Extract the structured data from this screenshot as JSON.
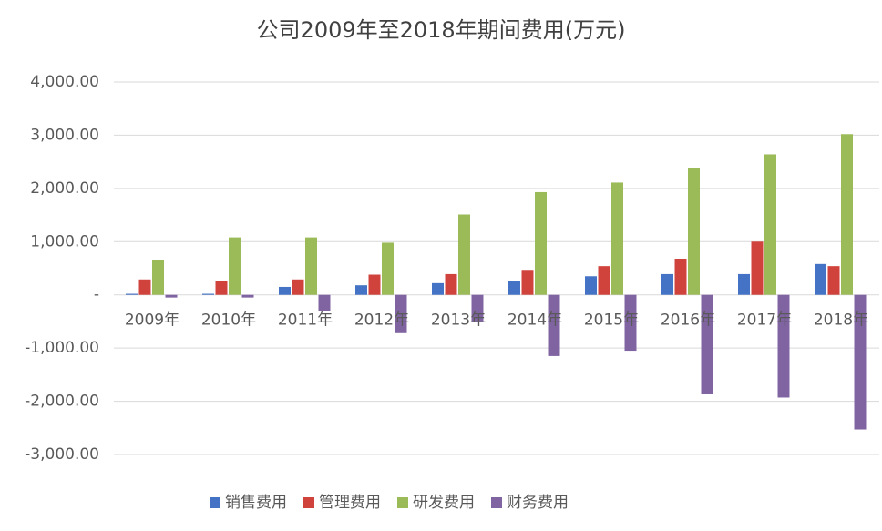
{
  "chart_data": {
    "type": "bar",
    "title": "公司2009年至2018年期间费用(万元)",
    "categories": [
      "2009年",
      "2010年",
      "2011年",
      "2012年",
      "2013年",
      "2014年",
      "2015年",
      "2016年",
      "2017年",
      "2018年"
    ],
    "series": [
      {
        "name": "销售费用",
        "color": "#4472c4",
        "values": [
          20,
          20,
          150,
          180,
          220,
          260,
          350,
          390,
          390,
          580
        ]
      },
      {
        "name": "管理费用",
        "color": "#d0433c",
        "values": [
          290,
          260,
          290,
          380,
          390,
          470,
          540,
          680,
          1000,
          540
        ]
      },
      {
        "name": "研发费用",
        "color": "#9bbb59",
        "values": [
          650,
          1080,
          1080,
          980,
          1510,
          1930,
          2110,
          2390,
          2640,
          3020
        ]
      },
      {
        "name": "财务费用",
        "color": "#8064a2",
        "values": [
          -50,
          -50,
          -300,
          -720,
          -500,
          -1150,
          -1050,
          -1870,
          -1930,
          -2530
        ]
      }
    ],
    "ylim": [
      -3000,
      4000
    ],
    "yticks": [
      {
        "value": -3000,
        "label": "-3,000.00"
      },
      {
        "value": -2000,
        "label": "-2,000.00"
      },
      {
        "value": -1000,
        "label": "-1,000.00"
      },
      {
        "value": 0,
        "label": "-"
      },
      {
        "value": 1000,
        "label": "1,000.00"
      },
      {
        "value": 2000,
        "label": "2,000.00"
      },
      {
        "value": 3000,
        "label": "3,000.00"
      },
      {
        "value": 4000,
        "label": "4,000.00"
      }
    ],
    "grid": true,
    "legend": "bottom"
  }
}
